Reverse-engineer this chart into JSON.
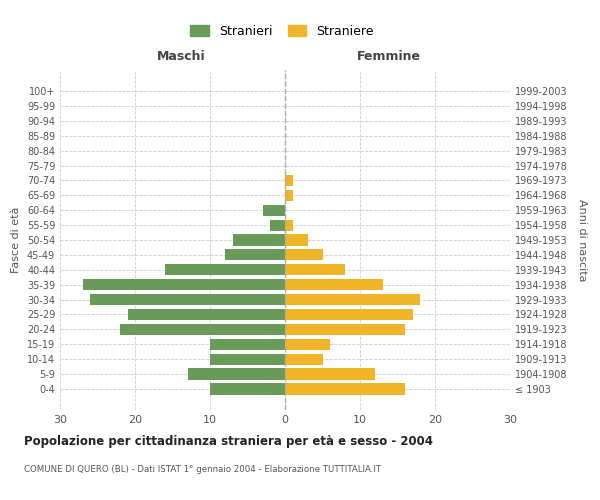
{
  "age_groups": [
    "100+",
    "95-99",
    "90-94",
    "85-89",
    "80-84",
    "75-79",
    "70-74",
    "65-69",
    "60-64",
    "55-59",
    "50-54",
    "45-49",
    "40-44",
    "35-39",
    "30-34",
    "25-29",
    "20-24",
    "15-19",
    "10-14",
    "5-9",
    "0-4"
  ],
  "birth_years": [
    "≤ 1903",
    "1904-1908",
    "1909-1913",
    "1914-1918",
    "1919-1923",
    "1924-1928",
    "1929-1933",
    "1934-1938",
    "1939-1943",
    "1944-1948",
    "1949-1953",
    "1954-1958",
    "1959-1963",
    "1964-1968",
    "1969-1973",
    "1974-1978",
    "1979-1983",
    "1984-1988",
    "1989-1993",
    "1994-1998",
    "1999-2003"
  ],
  "maschi": [
    0,
    0,
    0,
    0,
    0,
    0,
    0,
    0,
    3,
    2,
    7,
    8,
    16,
    27,
    26,
    21,
    22,
    10,
    10,
    13,
    10
  ],
  "femmine": [
    0,
    0,
    0,
    0,
    0,
    0,
    1,
    1,
    0,
    1,
    3,
    5,
    8,
    13,
    18,
    17,
    16,
    6,
    5,
    12,
    16
  ],
  "color_maschi": "#6a9a5a",
  "color_femmine": "#f0b429",
  "background_color": "#ffffff",
  "grid_color": "#cccccc",
  "title": "Popolazione per cittadinanza straniera per età e sesso - 2004",
  "subtitle": "COMUNE DI QUERO (BL) - Dati ISTAT 1° gennaio 2004 - Elaborazione TUTTITALIA.IT",
  "xlabel_left": "Maschi",
  "xlabel_right": "Femmine",
  "ylabel_left": "Fasce di età",
  "ylabel_right": "Anni di nascita",
  "legend_maschi": "Stranieri",
  "legend_femmine": "Straniere",
  "xlim": 30
}
